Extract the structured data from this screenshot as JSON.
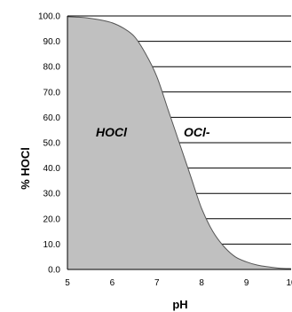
{
  "chart_data": {
    "type": "area",
    "xlabel": "pH",
    "ylabel": "% HOCl",
    "xlim": [
      5,
      10
    ],
    "ylim": [
      0,
      100
    ],
    "x_ticks": [
      "5",
      "6",
      "7",
      "8",
      "9",
      "10"
    ],
    "y_ticks": [
      "0.0",
      "10.0",
      "20.0",
      "30.0",
      "40.0",
      "50.0",
      "60.0",
      "70.0",
      "80.0",
      "90.0",
      "100.0"
    ],
    "grid": "horizontal",
    "annotations": [
      "HOCl",
      "OCl-"
    ],
    "colors": {
      "fill": "#c0c0c0",
      "line": "#555555",
      "grid": "#000000"
    },
    "x": [
      5.0,
      5.25,
      5.5,
      5.75,
      6.0,
      6.25,
      6.5,
      6.75,
      7.0,
      7.25,
      7.5,
      7.75,
      8.0,
      8.25,
      8.5,
      8.75,
      9.0,
      9.25,
      9.5,
      9.75,
      10.0
    ],
    "values": [
      99.7,
      99.5,
      99.1,
      98.4,
      97.3,
      95.2,
      91.8,
      85.0,
      76.0,
      63.0,
      50.0,
      37.0,
      24.0,
      15.0,
      9.0,
      5.0,
      3.0,
      1.7,
      1.0,
      0.5,
      0.3
    ]
  }
}
